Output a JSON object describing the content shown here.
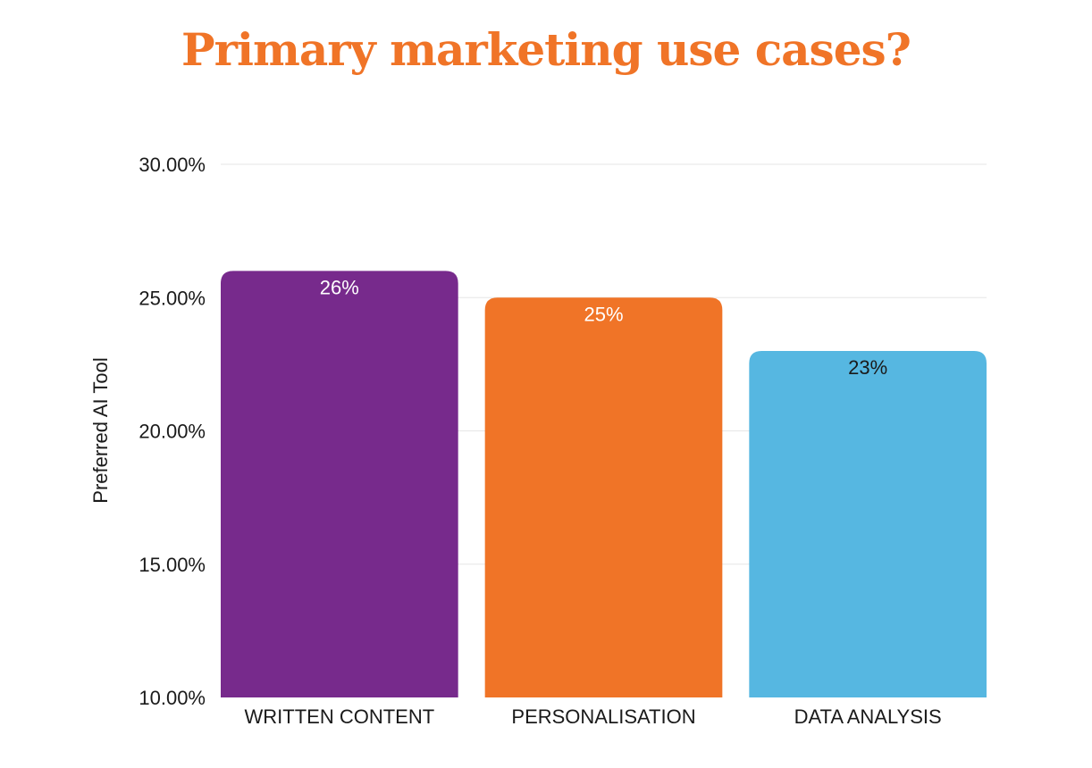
{
  "chart_data": {
    "type": "bar",
    "title": "Primary marketing use cases?",
    "ylabel": "Preferred AI Tool",
    "xlabel": "",
    "categories": [
      "WRITTEN CONTENT",
      "PERSONALISATION",
      "DATA ANALYSIS"
    ],
    "values": [
      26,
      25,
      23
    ],
    "data_labels": [
      "26%",
      "25%",
      "23%"
    ],
    "bar_colors": [
      "#772a8c",
      "#f07427",
      "#56b7e1"
    ],
    "data_label_colors": [
      "#ffffff",
      "#ffffff",
      "#1a1a1a"
    ],
    "ylim": [
      10,
      30
    ],
    "yticks": [
      10,
      15,
      20,
      25,
      30
    ],
    "ytick_labels": [
      "10.00%",
      "15.00%",
      "20.00%",
      "25.00%",
      "30.00%"
    ],
    "grid": true,
    "legend": "none"
  },
  "colors": {
    "title": "#f07427",
    "gridline": "#e6e6e6",
    "text": "#1a1a1a"
  }
}
